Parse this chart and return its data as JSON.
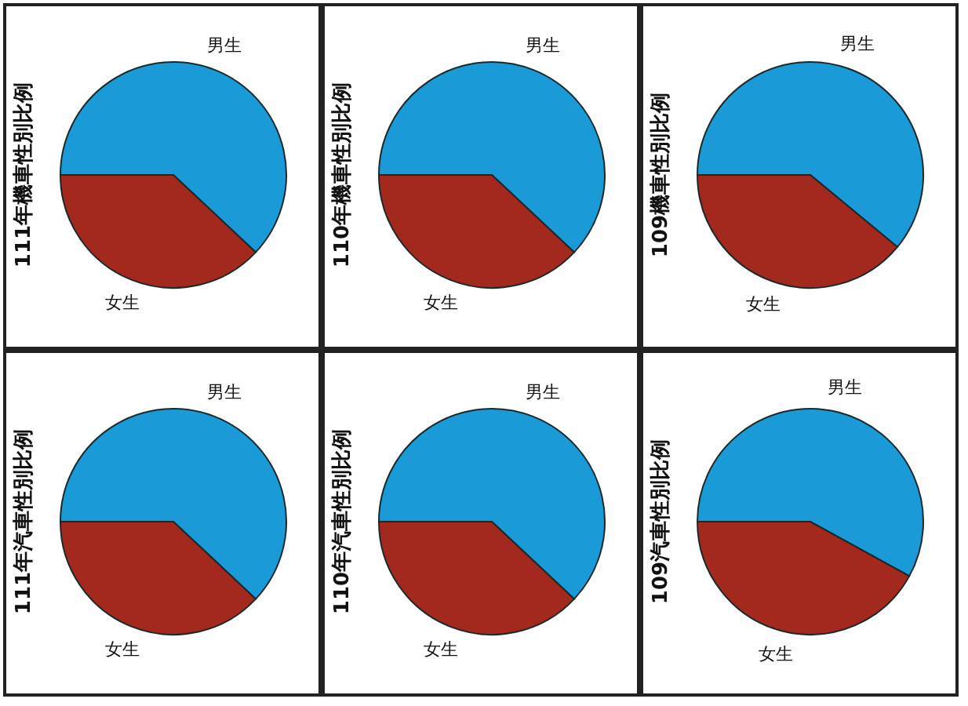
{
  "chart_data": [
    {
      "type": "pie",
      "title": "111年機車性別比例",
      "categories": [
        "男生",
        "女生"
      ],
      "values": [
        62,
        38
      ],
      "colors": [
        "#1b9ad8",
        "#a3281d"
      ]
    },
    {
      "type": "pie",
      "title": "110年機車性別比例",
      "categories": [
        "男生",
        "女生"
      ],
      "values": [
        62,
        38
      ],
      "colors": [
        "#1b9ad8",
        "#a3281d"
      ]
    },
    {
      "type": "pie",
      "title": "109機車性別比例",
      "categories": [
        "男生",
        "女生"
      ],
      "values": [
        61,
        39
      ],
      "colors": [
        "#1b9ad8",
        "#a3281d"
      ]
    },
    {
      "type": "pie",
      "title": "111年汽車性別比例",
      "categories": [
        "男生",
        "女生"
      ],
      "values": [
        62,
        38
      ],
      "colors": [
        "#1b9ad8",
        "#a3281d"
      ]
    },
    {
      "type": "pie",
      "title": "110年汽車性別比例",
      "categories": [
        "男生",
        "女生"
      ],
      "values": [
        62,
        38
      ],
      "colors": [
        "#1b9ad8",
        "#a3281d"
      ]
    },
    {
      "type": "pie",
      "title": "109汽車性別比例",
      "categories": [
        "男生",
        "女生"
      ],
      "values": [
        58,
        42
      ],
      "colors": [
        "#1b9ad8",
        "#a3281d"
      ]
    }
  ]
}
